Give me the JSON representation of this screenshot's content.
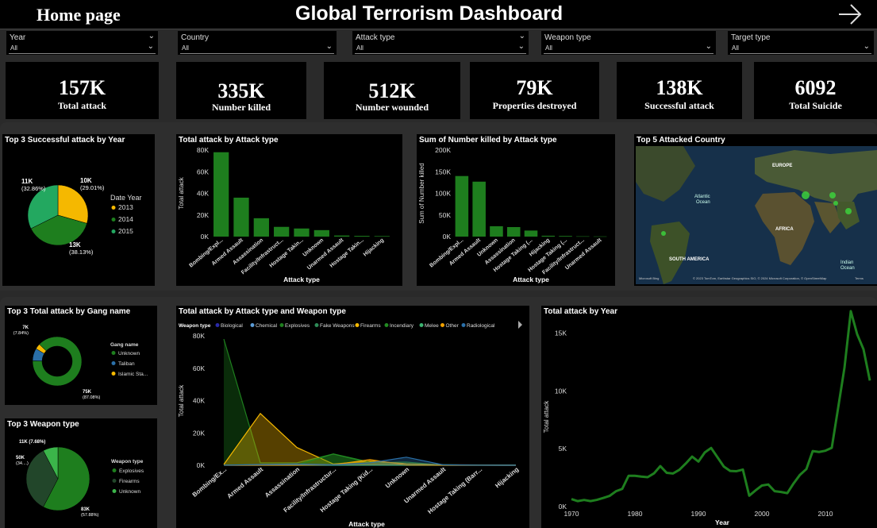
{
  "header": {
    "home": "Home page",
    "title": "Global Terrorism Dashboard"
  },
  "filters": [
    {
      "label": "Year",
      "value": "All"
    },
    {
      "label": "Country",
      "value": "All"
    },
    {
      "label": "Attack type",
      "value": "All"
    },
    {
      "label": "Weapon type",
      "value": "All"
    },
    {
      "label": "Target type",
      "value": "All"
    }
  ],
  "kpis": [
    {
      "value": "157K",
      "label": "Total attack"
    },
    {
      "value": "335K",
      "label": "Number killed"
    },
    {
      "value": "512K",
      "label": "Number wounded"
    },
    {
      "value": "79K",
      "label": "Properties destroyed"
    },
    {
      "value": "138K",
      "label": "Successful attack"
    },
    {
      "value": "6092",
      "label": "Total Suicide"
    }
  ],
  "map": {
    "title": "Top 5 Attacked Country",
    "labels": [
      "EUROPE",
      "Atlantic Ocean",
      "AFRICA",
      "SOUTH AMERICA",
      "Indian Ocean"
    ],
    "atlantic1": "Atlantic",
    "atlantic2": "Ocean",
    "indian1": "Indian",
    "indian2": "Ocean",
    "brand": "Microsoft Bing",
    "credit": "© 2023 TomTom, Earthstar Geographics SIO, © 2024 Microsoft Corporation, © OpenStreetMap",
    "terms": "Terms"
  },
  "chart_data": [
    {
      "id": "pie_year",
      "type": "pie",
      "title": "Top 3 Successful attack by Year",
      "legend_title": "Date Year",
      "categories": [
        "2013",
        "2014",
        "2015"
      ],
      "values": [
        10000,
        13000,
        11000
      ],
      "labels": [
        [
          "10K",
          "(29.01%)"
        ],
        [
          "13K",
          "(38.13%)"
        ],
        [
          "11K",
          "(32.86%)"
        ]
      ],
      "percent": [
        29.01,
        38.13,
        32.86
      ],
      "colors": [
        "#f5b800",
        "#1e7e1e",
        "#23a860"
      ]
    },
    {
      "id": "bar_attack",
      "type": "bar",
      "title": "Total attack by Attack type",
      "xlabel": "Attack type",
      "ylabel": "Total attack",
      "categories": [
        "Bombing/Expl...",
        "Armed Assault",
        "Assassination",
        "Facility/Infrastruct...",
        "Hostage Takin...",
        "Unknown",
        "Unarmed Assault",
        "Hostage Takin...",
        "Hijacking"
      ],
      "values": [
        78000,
        36000,
        17000,
        9000,
        7500,
        6000,
        1000,
        700,
        500
      ],
      "ylim": [
        0,
        80000
      ],
      "yticks": [
        "0K",
        "20K",
        "40K",
        "60K",
        "80K"
      ],
      "color": "#1e7e1e"
    },
    {
      "id": "bar_killed",
      "type": "bar",
      "title": "Sum of Number killed by Attack type",
      "xlabel": "Attack type",
      "ylabel": "Sum of Number killed",
      "categories": [
        "Bombing/Expl...",
        "Armed Assault",
        "Unknown",
        "Assassination",
        "Hostage Taking (...",
        "Hijacking",
        "Hostage Taking (...",
        "Facility/Infrastruct...",
        "Unarmed Assault"
      ],
      "values": [
        140000,
        127000,
        24000,
        22000,
        14000,
        2000,
        1500,
        700,
        500
      ],
      "ylim": [
        0,
        200000
      ],
      "yticks": [
        "0K",
        "50K",
        "100K",
        "150K",
        "200K"
      ],
      "color": "#1e7e1e"
    },
    {
      "id": "donut_gang",
      "type": "pie",
      "title": "Top 3 Total attack by Gang name",
      "legend_title": "Gang name",
      "categories": [
        "Unknown",
        "Taliban",
        "Islamic Sta..."
      ],
      "values": [
        75000,
        7000,
        3000
      ],
      "labels": [
        [
          "75K",
          "(87.08%)"
        ],
        [
          "7K",
          "(7.84%)"
        ],
        [
          "",
          ""
        ]
      ],
      "percent": [
        87.08,
        7.84,
        5.08
      ],
      "colors": [
        "#1e7e1e",
        "#2a6fa8",
        "#f5b800"
      ]
    },
    {
      "id": "pie_weapon",
      "type": "pie",
      "title": "Top 3 Weapon type",
      "legend_title": "Weapon type",
      "categories": [
        "Explosives",
        "Firearms",
        "Unknown"
      ],
      "values": [
        83000,
        50000,
        11000
      ],
      "labels": [
        [
          "83K",
          "(57.88%)"
        ],
        [
          "50K",
          "(34....)"
        ],
        [
          "11K (7.68%)",
          ""
        ]
      ],
      "percent": [
        57.88,
        34.44,
        7.68
      ],
      "colors": [
        "#1e7e1e",
        "#22462a",
        "#3bb54a"
      ]
    },
    {
      "id": "area_weapon",
      "type": "area",
      "title": "Total attack by Attack type and Weapon type",
      "xlabel": "Attack type",
      "ylabel": "Total attack",
      "legend_title": "Weapon type",
      "categories": [
        "Bombing/Ex...",
        "Armed Assault",
        "Assassination",
        "Facility/Infrastructur...",
        "Hostage Taking (Kid...",
        "Unknown",
        "Unarmed Assault",
        "Hostage Taking (Barr...",
        "Hijacking"
      ],
      "ylim": [
        0,
        80000
      ],
      "yticks": [
        "0K",
        "20K",
        "40K",
        "60K",
        "80K"
      ],
      "series": [
        {
          "name": "Biological",
          "color": "#2a2aa8",
          "values": [
            0,
            0,
            0,
            0,
            0,
            0,
            0,
            0,
            0
          ]
        },
        {
          "name": "Chemical",
          "color": "#5b9bd5",
          "values": [
            100,
            100,
            100,
            50,
            50,
            300,
            50,
            50,
            0
          ]
        },
        {
          "name": "Explosives",
          "color": "#1e7e1e",
          "values": [
            78000,
            1500,
            1500,
            7000,
            1500,
            2000,
            100,
            100,
            200
          ]
        },
        {
          "name": "Fake Weapons",
          "color": "#2e8b57",
          "values": [
            0,
            0,
            0,
            0,
            0,
            0,
            0,
            0,
            0
          ]
        },
        {
          "name": "Firearms",
          "color": "#f5b800",
          "values": [
            500,
            32000,
            11000,
            800,
            2500,
            1000,
            300,
            200,
            100
          ]
        },
        {
          "name": "Incendiary",
          "color": "#228b22",
          "values": [
            200,
            300,
            200,
            7000,
            2000,
            500,
            100,
            50,
            50
          ]
        },
        {
          "name": "Melee",
          "color": "#3cb371",
          "values": [
            50,
            300,
            300,
            100,
            300,
            200,
            300,
            50,
            50
          ]
        },
        {
          "name": "Other",
          "color": "#f0a000",
          "values": [
            50,
            50,
            50,
            300,
            3500,
            200,
            50,
            50,
            50
          ]
        },
        {
          "name": "Radiological",
          "color": "#2a6fa8",
          "values": [
            100,
            500,
            800,
            300,
            1500,
            5000,
            300,
            100,
            100
          ]
        }
      ]
    },
    {
      "id": "line_year",
      "type": "line",
      "title": "Total attack by Year",
      "xlabel": "Year",
      "ylabel": "Total attack",
      "xlim": [
        1970,
        2017
      ],
      "ylim": [
        0,
        16000
      ],
      "xticks": [
        "1970",
        "1980",
        "1990",
        "2000",
        "2010"
      ],
      "yticks": [
        "0K",
        "5K",
        "10K",
        "15K"
      ],
      "color": "#1e7e1e",
      "x": [
        1970,
        1971,
        1972,
        1973,
        1974,
        1975,
        1976,
        1977,
        1978,
        1979,
        1980,
        1981,
        1982,
        1983,
        1984,
        1985,
        1986,
        1987,
        1988,
        1989,
        1990,
        1991,
        1992,
        1994,
        1995,
        1996,
        1997,
        1998,
        1999,
        2000,
        2001,
        2002,
        2003,
        2004,
        2005,
        2006,
        2007,
        2008,
        2009,
        2010,
        2011,
        2012,
        2013,
        2014,
        2015,
        2016,
        2017
      ],
      "y": [
        650,
        470,
        570,
        470,
        580,
        740,
        920,
        1320,
        1530,
        2660,
        2660,
        2590,
        2540,
        2870,
        3500,
        2920,
        2860,
        3180,
        3720,
        4320,
        3890,
        4680,
        5070,
        3460,
        3080,
        3060,
        3200,
        940,
        1400,
        1820,
        1910,
        1330,
        1260,
        1160,
        2010,
        2750,
        3240,
        4800,
        4720,
        4830,
        5080,
        8520,
        12000,
        16900,
        14900,
        13600,
        10900
      ]
    }
  ]
}
